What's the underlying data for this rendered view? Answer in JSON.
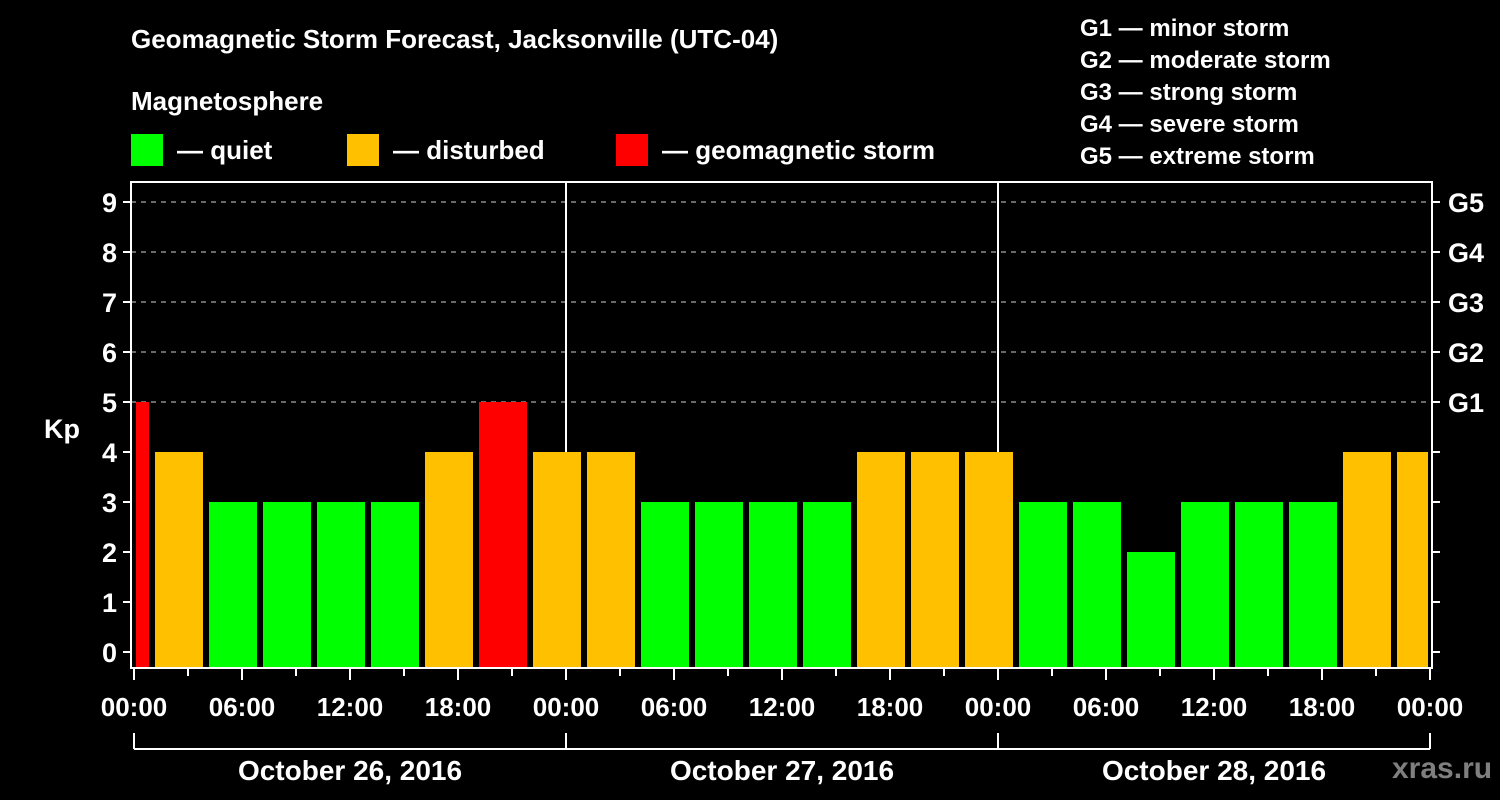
{
  "title": "Geomagnetic Storm Forecast, Jacksonville (UTC-04)",
  "subtitle": "Magnetosphere",
  "legend": [
    {
      "label": "— quiet",
      "color": "#00ff00"
    },
    {
      "label": "— disturbed",
      "color": "#ffc000"
    },
    {
      "label": "— geomagnetic storm",
      "color": "#ff0000"
    }
  ],
  "g_scale": [
    "G1 — minor storm",
    "G2 — moderate storm",
    "G3 — strong storm",
    "G4 — severe storm",
    "G5 — extreme storm"
  ],
  "watermark": "xras.ru",
  "chart_data": {
    "type": "bar",
    "title": "Geomagnetic Storm Forecast, Jacksonville (UTC-04)",
    "ylabel": "Kp",
    "xlabel": "",
    "ylim": [
      0,
      9
    ],
    "yticks": [
      "0",
      "1",
      "2",
      "3",
      "4",
      "5",
      "6",
      "7",
      "8",
      "9"
    ],
    "right_ticks": [
      {
        "kp": 5,
        "label": "G1"
      },
      {
        "kp": 6,
        "label": "G2"
      },
      {
        "kp": 7,
        "label": "G3"
      },
      {
        "kp": 8,
        "label": "G4"
      },
      {
        "kp": 9,
        "label": "G5"
      }
    ],
    "grid": "dashed horizontal at Kp 5–9",
    "xrange_hours": [
      0,
      72
    ],
    "xtick_labels": [
      "00:00",
      "06:00",
      "12:00",
      "18:00",
      "00:00",
      "06:00",
      "12:00",
      "18:00",
      "00:00",
      "06:00",
      "12:00",
      "18:00",
      "00:00"
    ],
    "days": [
      "October 26, 2016",
      "October 27, 2016",
      "October 28, 2016"
    ],
    "bar_interval_hours": 3,
    "bar_start_offset_hours": -2,
    "values": [
      5,
      4,
      3,
      3,
      3,
      3,
      4,
      5,
      4,
      4,
      3,
      3,
      3,
      3,
      4,
      4,
      4,
      3,
      3,
      2,
      3,
      3,
      3,
      4,
      4
    ],
    "colors": {
      "quiet": "#00ff00",
      "disturbed": "#ffc000",
      "storm": "#ff0000"
    },
    "thresholds": {
      "disturbed_min": 4,
      "storm_min": 5
    }
  }
}
